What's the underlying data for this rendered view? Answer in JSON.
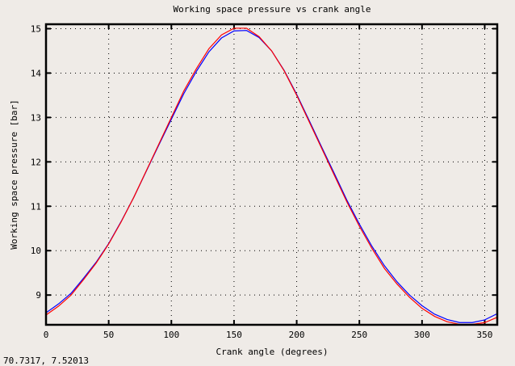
{
  "chart_data": {
    "type": "line",
    "title": "Working space pressure vs crank angle",
    "xlabel": "Crank angle (degrees)",
    "ylabel": "Working space pressure [bar]",
    "xlim": [
      0,
      360
    ],
    "ylim": [
      8.33,
      15.1
    ],
    "xticks": [
      0,
      50,
      100,
      150,
      200,
      250,
      300,
      350
    ],
    "yticks": [
      9,
      10,
      11,
      12,
      13,
      14,
      15
    ],
    "grid": true,
    "x": [
      0,
      10,
      20,
      30,
      40,
      50,
      60,
      70,
      80,
      90,
      100,
      110,
      120,
      130,
      140,
      150,
      160,
      170,
      180,
      190,
      200,
      210,
      220,
      230,
      240,
      250,
      260,
      270,
      280,
      290,
      300,
      310,
      320,
      330,
      340,
      350,
      360
    ],
    "series": [
      {
        "color": "#0000ff",
        "values": [
          8.6,
          8.8,
          9.04,
          9.38,
          9.74,
          10.16,
          10.66,
          11.2,
          11.79,
          12.38,
          12.96,
          13.54,
          14.04,
          14.48,
          14.79,
          14.95,
          14.96,
          14.8,
          14.5,
          14.06,
          13.52,
          12.93,
          12.33,
          11.74,
          11.14,
          10.6,
          10.1,
          9.66,
          9.3,
          9.0,
          8.76,
          8.57,
          8.45,
          8.38,
          8.38,
          8.44,
          8.58
        ]
      },
      {
        "color": "#ff0000",
        "values": [
          8.55,
          8.75,
          9.0,
          9.35,
          9.72,
          10.15,
          10.65,
          11.2,
          11.8,
          12.4,
          13.0,
          13.6,
          14.1,
          14.55,
          14.86,
          15.01,
          15.01,
          14.82,
          14.5,
          14.05,
          13.5,
          12.9,
          12.3,
          11.7,
          11.1,
          10.55,
          10.05,
          9.6,
          9.25,
          8.95,
          8.7,
          8.52,
          8.4,
          8.34,
          8.34,
          8.38,
          8.5
        ]
      }
    ]
  },
  "status": {
    "coordinates": "70.7317, 7.52013"
  }
}
